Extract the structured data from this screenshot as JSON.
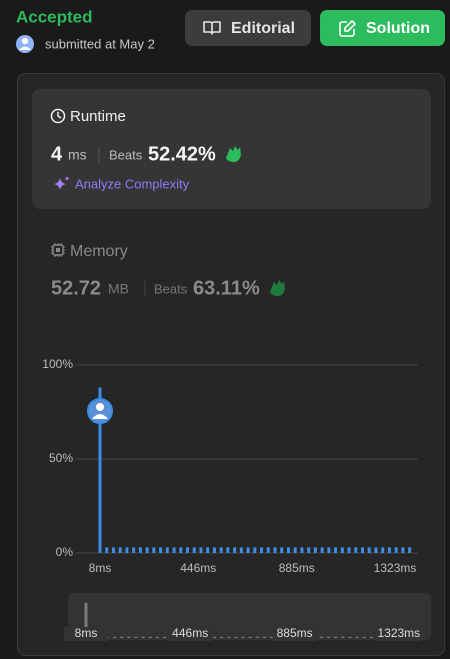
{
  "header": {
    "status": "Accepted",
    "submitted": "submitted at May 2",
    "editorial_button": "Editorial",
    "solution_button": "Solution"
  },
  "runtime": {
    "title": "Runtime",
    "value": "4",
    "unit": "ms",
    "beats_label": "Beats",
    "beats": "52.42%",
    "analyze": "Analyze Complexity"
  },
  "memory": {
    "title": "Memory",
    "value": "52.72",
    "unit": "MB",
    "beats_label": "Beats",
    "beats": "63.11%"
  },
  "chart_data": {
    "type": "bar",
    "x": [
      8,
      38,
      68,
      98,
      128,
      158,
      188,
      218,
      248,
      278,
      308,
      338,
      368,
      398,
      428,
      458,
      488,
      518,
      548,
      578,
      608,
      638,
      668,
      698,
      728,
      758,
      788,
      818,
      848,
      878,
      908,
      938,
      968,
      998,
      1028,
      1058,
      1088,
      1118,
      1148,
      1178,
      1208,
      1238,
      1268,
      1298,
      1328,
      1358,
      1388
    ],
    "values": [
      88,
      3,
      3,
      3,
      3,
      3,
      3,
      3,
      3,
      3,
      3,
      3,
      3,
      3,
      3,
      3,
      3,
      3,
      3,
      3,
      3,
      3,
      3,
      3,
      3,
      3,
      3,
      3,
      3,
      3,
      3,
      3,
      3,
      3,
      3,
      3,
      3,
      3,
      3,
      3,
      3,
      3,
      3,
      3,
      3,
      3,
      3
    ],
    "color": "#3a8ee6",
    "xlim": [
      8,
      1412
    ],
    "xticks": [
      {
        "value": 8,
        "label": "8ms"
      },
      {
        "value": 446,
        "label": "446ms"
      },
      {
        "value": 885,
        "label": "885ms"
      },
      {
        "value": 1323,
        "label": "1323ms"
      }
    ],
    "ylim": [
      0,
      100
    ],
    "yticks": [
      {
        "value": 0,
        "label": "0%"
      },
      {
        "value": 50,
        "label": "50%"
      },
      {
        "value": 100,
        "label": "100%"
      }
    ],
    "grid": true
  }
}
